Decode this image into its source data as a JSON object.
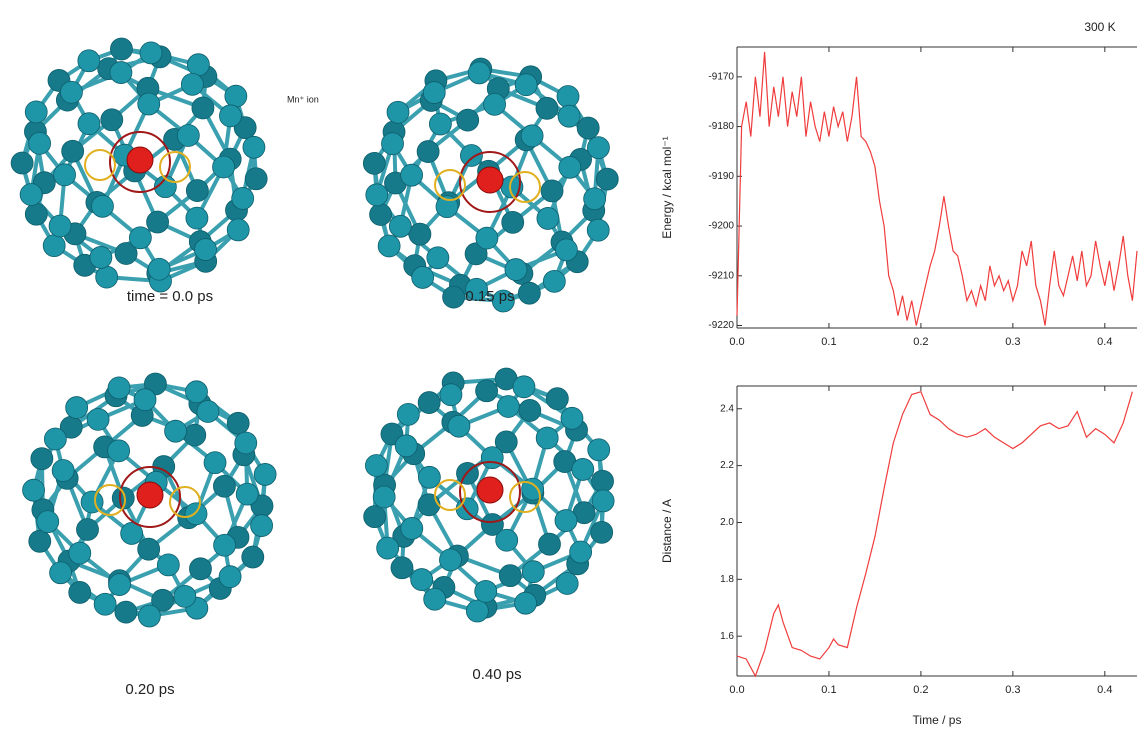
{
  "panels": [
    {
      "label": "time = 0.0 ps"
    },
    {
      "label": "0.15 ps"
    },
    {
      "label": "0.20 ps"
    },
    {
      "label": "0.40 ps"
    }
  ],
  "ion_label": "Mn⁺ ion",
  "chart_data": [
    {
      "type": "line",
      "title": "300 K",
      "y_label": "Energy / kcal mol⁻¹",
      "x": [
        0,
        0.005,
        0.01,
        0.015,
        0.02,
        0.025,
        0.03,
        0.035,
        0.04,
        0.045,
        0.05,
        0.055,
        0.06,
        0.065,
        0.07,
        0.075,
        0.08,
        0.085,
        0.09,
        0.095,
        0.1,
        0.105,
        0.11,
        0.115,
        0.12,
        0.125,
        0.13,
        0.135,
        0.14,
        0.145,
        0.15,
        0.155,
        0.16,
        0.165,
        0.17,
        0.175,
        0.18,
        0.185,
        0.19,
        0.195,
        0.2,
        0.205,
        0.21,
        0.215,
        0.22,
        0.225,
        0.23,
        0.235,
        0.24,
        0.245,
        0.25,
        0.255,
        0.26,
        0.265,
        0.27,
        0.275,
        0.28,
        0.285,
        0.29,
        0.295,
        0.3,
        0.305,
        0.31,
        0.315,
        0.32,
        0.325,
        0.33,
        0.335,
        0.34,
        0.345,
        0.35,
        0.355,
        0.36,
        0.365,
        0.37,
        0.375,
        0.38,
        0.385,
        0.39,
        0.395,
        0.4,
        0.405,
        0.41,
        0.415,
        0.42,
        0.425,
        0.43,
        0.435
      ],
      "series": [
        {
          "color": "#f03c3c",
          "values": [
            -9218,
            -9180,
            -9175,
            -9182,
            -9170,
            -9178,
            -9165,
            -9180,
            -9172,
            -9178,
            -9170,
            -9180,
            -9173,
            -9178,
            -9170,
            -9182,
            -9175,
            -9180,
            -9183,
            -9177,
            -9182,
            -9176,
            -9180,
            -9177,
            -9183,
            -9178,
            -9170,
            -9182,
            -9183,
            -9185,
            -9188,
            -9195,
            -9200,
            -9210,
            -9213,
            -9218,
            -9214,
            -9219,
            -9215,
            -9220,
            -9216,
            -9212,
            -9208,
            -9205,
            -9200,
            -9194,
            -9200,
            -9205,
            -9206,
            -9210,
            -9215,
            -9213,
            -9216,
            -9212,
            -9215,
            -9208,
            -9212,
            -9210,
            -9213,
            -9211,
            -9215,
            -9212,
            -9205,
            -9208,
            -9203,
            -9212,
            -9215,
            -9220,
            -9212,
            -9205,
            -9212,
            -9214,
            -9210,
            -9206,
            -9211,
            -9205,
            -9212,
            -9210,
            -9203,
            -9208,
            -9212,
            -9207,
            -9213,
            -9208,
            -9202,
            -9210,
            -9215,
            -9205
          ]
        }
      ],
      "xlim": [
        0,
        0.435
      ],
      "ylim": [
        -9220.5,
        -9164
      ],
      "xticks": [
        {
          "value": 0,
          "label": "0.0"
        },
        0.1,
        0.2,
        0.3,
        0.4
      ],
      "yticks": [
        -9170,
        -9180,
        -9190,
        -9200,
        -9210,
        -9220
      ]
    },
    {
      "type": "line",
      "y_label": "Distance / A",
      "x_label": "Time / ps",
      "x": [
        0,
        0.01,
        0.02,
        0.03,
        0.04,
        0.045,
        0.05,
        0.06,
        0.07,
        0.08,
        0.09,
        0.1,
        0.105,
        0.11,
        0.12,
        0.13,
        0.14,
        0.15,
        0.16,
        0.17,
        0.18,
        0.19,
        0.2,
        0.21,
        0.22,
        0.23,
        0.24,
        0.25,
        0.26,
        0.27,
        0.28,
        0.29,
        0.3,
        0.31,
        0.32,
        0.33,
        0.34,
        0.35,
        0.36,
        0.37,
        0.38,
        0.39,
        0.4,
        0.41,
        0.42,
        0.43
      ],
      "series": [
        {
          "color": "#f03c3c",
          "values": [
            1.53,
            1.52,
            1.46,
            1.55,
            1.68,
            1.71,
            1.65,
            1.56,
            1.55,
            1.53,
            1.52,
            1.56,
            1.59,
            1.57,
            1.56,
            1.7,
            1.82,
            1.95,
            2.12,
            2.28,
            2.38,
            2.45,
            2.46,
            2.38,
            2.36,
            2.33,
            2.31,
            2.3,
            2.31,
            2.33,
            2.3,
            2.28,
            2.26,
            2.28,
            2.31,
            2.34,
            2.35,
            2.33,
            2.34,
            2.39,
            2.3,
            2.33,
            2.31,
            2.28,
            2.35,
            2.46
          ]
        }
      ],
      "xlim": [
        0,
        0.435
      ],
      "ylim": [
        1.46,
        2.48
      ],
      "xticks": [
        {
          "value": 0,
          "label": "0.0"
        },
        0.1,
        0.2,
        0.3,
        0.4
      ],
      "yticks": [
        2.4,
        2.2,
        {
          "value": 2.0,
          "label": "2.0"
        },
        1.8,
        1.6
      ]
    }
  ]
}
